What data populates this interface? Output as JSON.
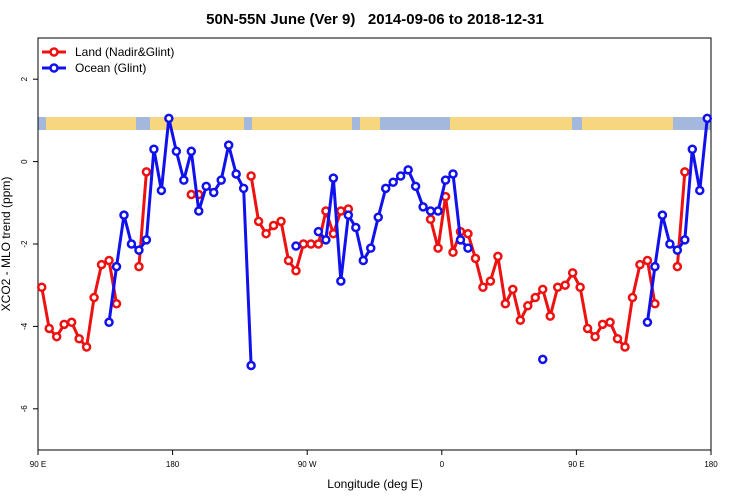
{
  "chart_data": {
    "type": "line",
    "title": "50N-55N June (Ver 9)   2014-09-06 to 2018-12-31",
    "x_label": "Longitude (deg E)",
    "y_label": "XCO2 - MLO trend (ppm)",
    "x": [
      92.5,
      97.5,
      102.5,
      107.5,
      112.5,
      117.5,
      122.5,
      127.5,
      132.5,
      137.5,
      142.5,
      147.5,
      152.5,
      157.5,
      162.5,
      167.5,
      172.5,
      177.5,
      182.5,
      187.5,
      192.5,
      197.5,
      202.5,
      207.5,
      212.5,
      217.5,
      222.5,
      227.5,
      232.5,
      237.5,
      242.5,
      247.5,
      252.5,
      257.5,
      262.5,
      267.5,
      272.5,
      277.5,
      282.5,
      287.5,
      292.5,
      297.5,
      302.5,
      307.5,
      312.5,
      317.5,
      322.5,
      327.5,
      332.5,
      337.5,
      342.5,
      347.5,
      352.5,
      357.5,
      362.5,
      367.5,
      372.5,
      377.5,
      382.5,
      387.5,
      392.5,
      397.5,
      402.5,
      407.5,
      412.5,
      417.5,
      422.5,
      427.5,
      432.5,
      437.5,
      442.5,
      447.5,
      452.5,
      457.5,
      462.5,
      467.5,
      472.5,
      477.5,
      482.5,
      487.5,
      492.5,
      497.5,
      502.5,
      507.5,
      512.5,
      517.5,
      522.5,
      527.5,
      532.5,
      537.5
    ],
    "series": [
      {
        "name": "Land (Nadir&Glint)",
        "color": "#ee1111",
        "values": [
          -3.05,
          -4.05,
          -4.25,
          -3.95,
          -3.9,
          -4.3,
          -4.5,
          -3.3,
          -2.5,
          -2.4,
          -3.45,
          null,
          null,
          -2.55,
          -0.25,
          null,
          null,
          null,
          null,
          null,
          -0.8,
          -0.8,
          null,
          null,
          null,
          null,
          null,
          null,
          -0.35,
          -1.45,
          -1.75,
          -1.55,
          -1.45,
          -2.4,
          -2.65,
          -2.0,
          -2.0,
          -2.0,
          -1.2,
          -1.75,
          -1.2,
          -1.15,
          null,
          null,
          null,
          null,
          null,
          null,
          null,
          null,
          null,
          null,
          -1.4,
          -2.1,
          -0.85,
          -2.2,
          -1.7,
          -1.75,
          -2.35,
          -3.05,
          -2.9,
          -2.3,
          -3.45,
          -3.1,
          -3.85,
          -3.5,
          -3.3,
          -3.1,
          -3.75,
          -3.05,
          -3.0,
          -2.7,
          -3.05,
          -4.05,
          -4.25,
          -3.95,
          -3.9,
          -4.3,
          -4.5,
          -3.3,
          -2.5,
          -2.4,
          -3.45,
          null,
          null,
          -2.55,
          -0.25,
          null,
          null,
          null
        ]
      },
      {
        "name": "Ocean (Glint)",
        "color": "#1111ee",
        "values": [
          null,
          null,
          null,
          null,
          null,
          null,
          null,
          null,
          null,
          -3.9,
          -2.55,
          -1.3,
          -2.0,
          -2.15,
          -1.9,
          0.3,
          -0.7,
          1.05,
          0.25,
          -0.45,
          0.25,
          -1.2,
          -0.6,
          -0.75,
          -0.45,
          0.4,
          -0.3,
          -0.65,
          -4.95,
          null,
          null,
          null,
          null,
          null,
          -2.05,
          null,
          null,
          -1.7,
          -1.9,
          -0.4,
          -2.9,
          -1.3,
          -1.6,
          -2.4,
          -2.1,
          -1.35,
          -0.65,
          -0.5,
          -0.35,
          -0.2,
          -0.6,
          -1.1,
          -1.2,
          -1.2,
          -0.45,
          -0.3,
          -1.9,
          -2.1,
          null,
          null,
          null,
          null,
          null,
          null,
          null,
          null,
          null,
          -4.8,
          null,
          null,
          null,
          null,
          null,
          null,
          null,
          null,
          null,
          null,
          null,
          null,
          null,
          -3.9,
          -2.55,
          -1.3,
          -2.0,
          -2.15,
          -1.9,
          0.3,
          -0.7,
          1.05
        ]
      }
    ],
    "xlim": [
      90,
      540
    ],
    "xticks": [
      {
        "value": 90,
        "label": "90 E"
      },
      180,
      {
        "value": 270,
        "label": "90 W"
      },
      {
        "value": 360,
        "label": "0"
      },
      {
        "value": 450,
        "label": "90 E"
      },
      {
        "value": 540,
        "label": "180"
      }
    ],
    "ylim": [
      -7,
      3
    ],
    "yticks": [
      -6,
      -4,
      -2,
      0,
      2
    ],
    "legend": "top-left"
  }
}
